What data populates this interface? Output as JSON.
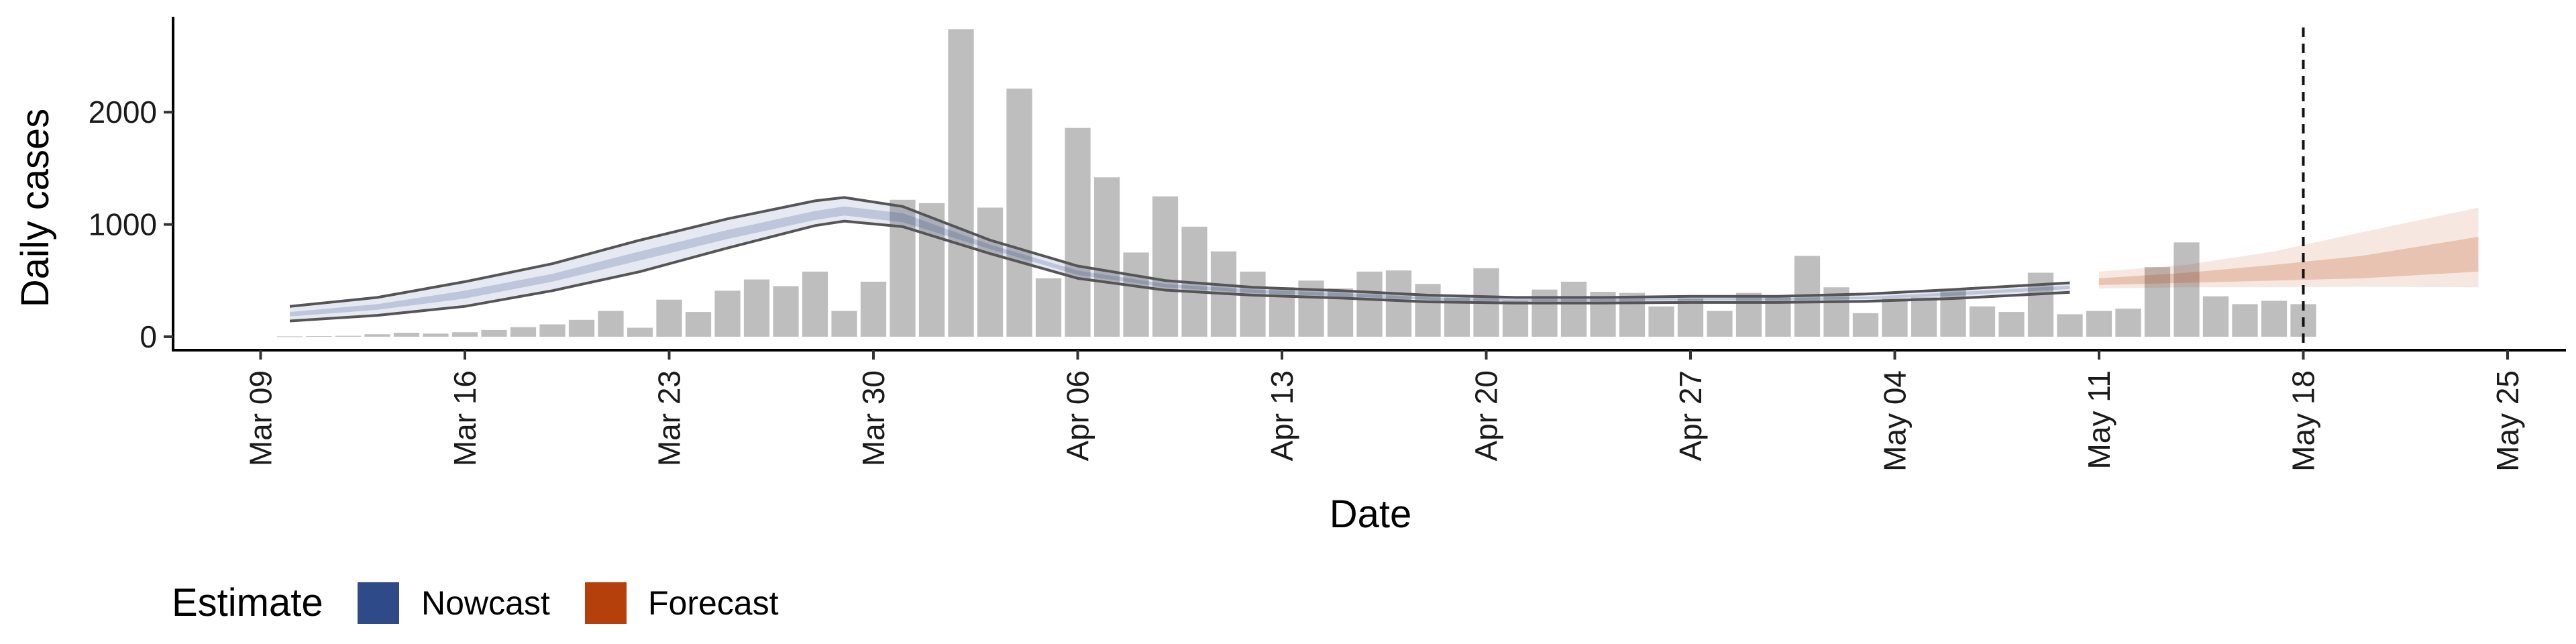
{
  "chart_data": {
    "type": "bar",
    "title": "",
    "xlabel": "Date",
    "ylabel": "Daily cases",
    "ylim": [
      -120,
      2850
    ],
    "y_ticks": [
      0,
      1000,
      2000
    ],
    "x_ticks": [
      "2020-03-09",
      "2020-03-16",
      "2020-03-23",
      "2020-03-30",
      "2020-04-06",
      "2020-04-13",
      "2020-04-20",
      "2020-04-27",
      "2020-05-04",
      "2020-05-11",
      "2020-05-18",
      "2020-05-25"
    ],
    "x_tick_labels": [
      "Mar 09",
      "Mar 16",
      "Mar 23",
      "Mar 30",
      "Apr 06",
      "Apr 13",
      "Apr 20",
      "Apr 27",
      "May 04",
      "May 11",
      "May 18",
      "May 25"
    ],
    "xlim": [
      "2020-03-06",
      "2020-05-27"
    ],
    "grid": false,
    "reference_line": {
      "date": "2020-05-18",
      "style": "dashed"
    },
    "bar_color": "#bebebe",
    "bars": [
      {
        "date": "2020-03-10",
        "value": 3
      },
      {
        "date": "2020-03-11",
        "value": 5
      },
      {
        "date": "2020-03-12",
        "value": 8
      },
      {
        "date": "2020-03-13",
        "value": 22
      },
      {
        "date": "2020-03-14",
        "value": 35
      },
      {
        "date": "2020-03-15",
        "value": 28
      },
      {
        "date": "2020-03-16",
        "value": 40
      },
      {
        "date": "2020-03-17",
        "value": 60
      },
      {
        "date": "2020-03-18",
        "value": 85
      },
      {
        "date": "2020-03-19",
        "value": 110
      },
      {
        "date": "2020-03-20",
        "value": 150
      },
      {
        "date": "2020-03-21",
        "value": 230
      },
      {
        "date": "2020-03-22",
        "value": 80
      },
      {
        "date": "2020-03-23",
        "value": 330
      },
      {
        "date": "2020-03-24",
        "value": 220
      },
      {
        "date": "2020-03-25",
        "value": 410
      },
      {
        "date": "2020-03-26",
        "value": 510
      },
      {
        "date": "2020-03-27",
        "value": 450
      },
      {
        "date": "2020-03-28",
        "value": 580
      },
      {
        "date": "2020-03-29",
        "value": 230
      },
      {
        "date": "2020-03-30",
        "value": 490
      },
      {
        "date": "2020-03-31",
        "value": 1220
      },
      {
        "date": "2020-04-01",
        "value": 1190
      },
      {
        "date": "2020-04-02",
        "value": 2740
      },
      {
        "date": "2020-04-03",
        "value": 1150
      },
      {
        "date": "2020-04-04",
        "value": 2210
      },
      {
        "date": "2020-04-05",
        "value": 520
      },
      {
        "date": "2020-04-06",
        "value": 1860
      },
      {
        "date": "2020-04-07",
        "value": 1420
      },
      {
        "date": "2020-04-08",
        "value": 750
      },
      {
        "date": "2020-04-09",
        "value": 1250
      },
      {
        "date": "2020-04-10",
        "value": 980
      },
      {
        "date": "2020-04-11",
        "value": 760
      },
      {
        "date": "2020-04-12",
        "value": 580
      },
      {
        "date": "2020-04-13",
        "value": 440
      },
      {
        "date": "2020-04-14",
        "value": 500
      },
      {
        "date": "2020-04-15",
        "value": 430
      },
      {
        "date": "2020-04-16",
        "value": 580
      },
      {
        "date": "2020-04-17",
        "value": 590
      },
      {
        "date": "2020-04-18",
        "value": 470
      },
      {
        "date": "2020-04-19",
        "value": 350
      },
      {
        "date": "2020-04-20",
        "value": 610
      },
      {
        "date": "2020-04-21",
        "value": 320
      },
      {
        "date": "2020-04-22",
        "value": 420
      },
      {
        "date": "2020-04-23",
        "value": 490
      },
      {
        "date": "2020-04-24",
        "value": 400
      },
      {
        "date": "2020-04-25",
        "value": 390
      },
      {
        "date": "2020-04-26",
        "value": 270
      },
      {
        "date": "2020-04-27",
        "value": 340
      },
      {
        "date": "2020-04-28",
        "value": 230
      },
      {
        "date": "2020-04-29",
        "value": 390
      },
      {
        "date": "2020-04-30",
        "value": 360
      },
      {
        "date": "2020-05-01",
        "value": 720
      },
      {
        "date": "2020-05-02",
        "value": 440
      },
      {
        "date": "2020-05-03",
        "value": 210
      },
      {
        "date": "2020-05-04",
        "value": 340
      },
      {
        "date": "2020-05-05",
        "value": 350
      },
      {
        "date": "2020-05-06",
        "value": 420
      },
      {
        "date": "2020-05-07",
        "value": 270
      },
      {
        "date": "2020-05-08",
        "value": 220
      },
      {
        "date": "2020-05-09",
        "value": 570
      },
      {
        "date": "2020-05-10",
        "value": 200
      },
      {
        "date": "2020-05-11",
        "value": 230
      },
      {
        "date": "2020-05-12",
        "value": 250
      },
      {
        "date": "2020-05-13",
        "value": 620
      },
      {
        "date": "2020-05-14",
        "value": 840
      },
      {
        "date": "2020-05-15",
        "value": 360
      },
      {
        "date": "2020-05-16",
        "value": 290
      },
      {
        "date": "2020-05-17",
        "value": 320
      },
      {
        "date": "2020-05-18",
        "value": 290
      }
    ],
    "series": [
      {
        "name": "Nowcast",
        "color": "#2f4a88",
        "dates": [
          "2020-03-10",
          "2020-03-13",
          "2020-03-16",
          "2020-03-19",
          "2020-03-22",
          "2020-03-25",
          "2020-03-28",
          "2020-03-29",
          "2020-03-31",
          "2020-04-03",
          "2020-04-06",
          "2020-04-09",
          "2020-04-12",
          "2020-04-15",
          "2020-04-18",
          "2020-04-21",
          "2020-04-24",
          "2020-04-27",
          "2020-04-30",
          "2020-05-03",
          "2020-05-06",
          "2020-05-10"
        ],
        "upper90": [
          270,
          350,
          490,
          650,
          860,
          1050,
          1210,
          1240,
          1160,
          860,
          630,
          500,
          440,
          410,
          370,
          350,
          350,
          360,
          360,
          380,
          420,
          480
        ],
        "upper50": [
          220,
          290,
          410,
          560,
          760,
          950,
          1120,
          1160,
          1100,
          820,
          590,
          470,
          420,
          390,
          350,
          335,
          335,
          345,
          345,
          355,
          395,
          455
        ],
        "median": [
          200,
          260,
          370,
          520,
          720,
          910,
          1080,
          1120,
          1060,
          800,
          570,
          455,
          405,
          375,
          340,
          325,
          325,
          335,
          335,
          345,
          380,
          440
        ],
        "lower50": [
          180,
          240,
          340,
          490,
          680,
          870,
          1040,
          1080,
          1020,
          780,
          550,
          440,
          390,
          360,
          330,
          315,
          315,
          325,
          325,
          335,
          365,
          425
        ],
        "lower90": [
          140,
          190,
          270,
          410,
          580,
          790,
          990,
          1030,
          980,
          740,
          520,
          415,
          370,
          345,
          310,
          300,
          300,
          305,
          305,
          315,
          340,
          395
        ]
      },
      {
        "name": "Forecast",
        "color": "#b5400c",
        "dates": [
          "2020-05-11",
          "2020-05-14",
          "2020-05-17",
          "2020-05-20",
          "2020-05-24"
        ],
        "upper90": [
          580,
          640,
          760,
          930,
          1150
        ],
        "upper50": [
          520,
          570,
          640,
          720,
          890
        ],
        "median": [
          490,
          520,
          560,
          620,
          700
        ],
        "lower50": [
          460,
          480,
          500,
          520,
          580
        ],
        "lower90": [
          430,
          440,
          440,
          445,
          440
        ]
      }
    ],
    "legend": {
      "title": "Estimate",
      "position": "bottom-left",
      "items": [
        {
          "label": "Nowcast",
          "color": "#2f4a88"
        },
        {
          "label": "Forecast",
          "color": "#b5400c"
        }
      ]
    }
  }
}
